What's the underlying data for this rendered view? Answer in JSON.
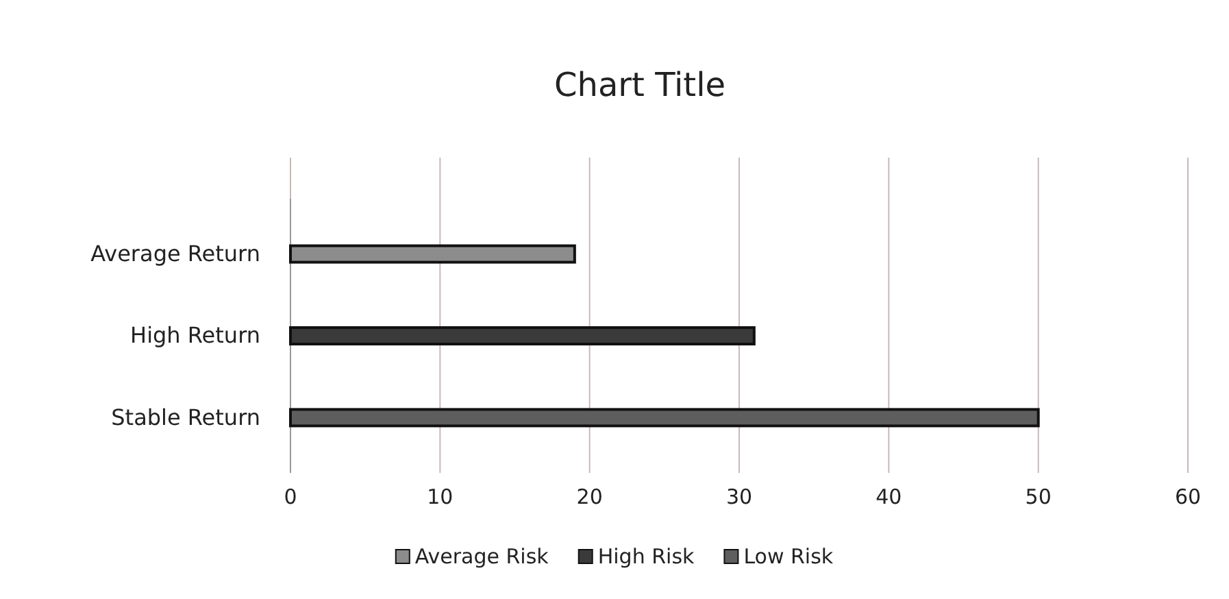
{
  "chart_data": {
    "type": "bar",
    "orientation": "horizontal",
    "stacked": true,
    "title": "Chart Title",
    "categories": [
      "Average Return",
      "High Return",
      "Stable Return"
    ],
    "series": [
      {
        "name": "Average Risk",
        "color": "#8c8c8c",
        "values": [
          19,
          null,
          null
        ]
      },
      {
        "name": "High Risk",
        "color": "#3a3a3a",
        "values": [
          null,
          31,
          null
        ]
      },
      {
        "name": "Low Risk",
        "color": "#5e5e5e",
        "values": [
          null,
          null,
          50
        ]
      }
    ],
    "xlim": [
      0,
      60
    ],
    "xticks": [
      0,
      10,
      20,
      30,
      40,
      50,
      60
    ],
    "grid": "x",
    "legend": "bottom"
  }
}
